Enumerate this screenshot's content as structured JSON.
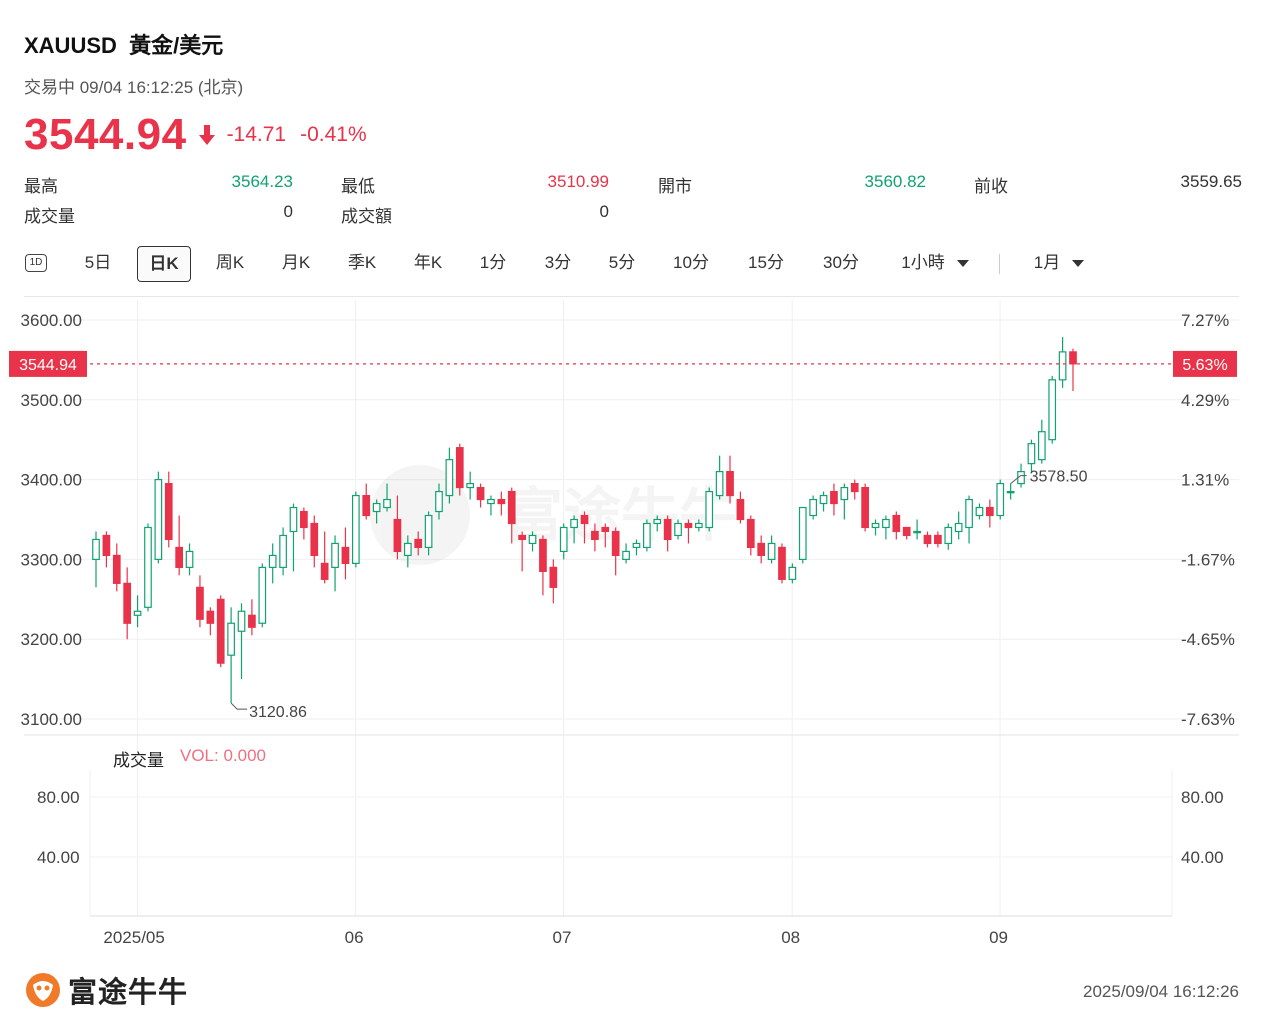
{
  "header": {
    "symbol": "XAUUSD",
    "name": "黃金/美元",
    "status_time": "交易中 09/04 16:12:25 (北京)",
    "price": "3544.94",
    "change": "-14.71",
    "change_pct": "-0.41%"
  },
  "stats": [
    {
      "label": "最高",
      "value": "3564.23",
      "color": "green"
    },
    {
      "label": "最低",
      "value": "3510.99",
      "color": "red"
    },
    {
      "label": "開市",
      "value": "3560.82",
      "color": "green"
    },
    {
      "label": "前收",
      "value": "3559.65",
      "color": "dark"
    },
    {
      "label": "成交量",
      "value": "0",
      "color": "dark"
    },
    {
      "label": "成交額",
      "value": "0",
      "color": "dark"
    }
  ],
  "tabs": {
    "d1": "1D",
    "items": [
      "5日",
      "日K",
      "周K",
      "月K",
      "季K",
      "年K",
      "1分",
      "3分",
      "5分",
      "10分",
      "15分",
      "30分"
    ],
    "active": "日K",
    "dropdown_interval": "1小時",
    "dropdown_range": "1月"
  },
  "volume": {
    "title": "成交量",
    "value_label": "VOL: 0.000",
    "y_ticks": [
      "80.00",
      "40.00"
    ]
  },
  "footer": {
    "brand": "富途牛牛",
    "timestamp": "2025/09/04 16:12:26"
  },
  "colors": {
    "up": "#10a36e",
    "down": "#e8334a",
    "price_line": "#e8334a"
  },
  "chart_data": {
    "type": "candlestick",
    "y_ticks": [
      "3600.00",
      "3500.00",
      "3400.00",
      "3300.00",
      "3200.00",
      "3100.00"
    ],
    "y_ticks_pct": [
      "7.27%",
      "4.29%",
      "1.31%",
      "-1.67%",
      "-4.65%",
      "-7.63%"
    ],
    "ylim": [
      3080,
      3625
    ],
    "x_labels": [
      {
        "label": "2025/05",
        "index": 1
      },
      {
        "label": "06",
        "index": 22
      },
      {
        "label": "07",
        "index": 42
      },
      {
        "label": "08",
        "index": 64
      },
      {
        "label": "09",
        "index": 84
      }
    ],
    "current_price": 3544.94,
    "current_price_label": "3544.94",
    "current_pct_label": "5.63%",
    "max_label": "3578.50",
    "max_index": 88,
    "min_label": "3120.86",
    "min_index": 13,
    "candles": [
      [
        3300,
        3325,
        3265,
        3335
      ],
      [
        3330,
        3305,
        3290,
        3335
      ],
      [
        3305,
        3270,
        3260,
        3320
      ],
      [
        3270,
        3220,
        3200,
        3290
      ],
      [
        3230,
        3235,
        3215,
        3255
      ],
      [
        3240,
        3340,
        3235,
        3345
      ],
      [
        3300,
        3400,
        3295,
        3410
      ],
      [
        3395,
        3325,
        3315,
        3410
      ],
      [
        3315,
        3290,
        3280,
        3355
      ],
      [
        3290,
        3310,
        3280,
        3320
      ],
      [
        3265,
        3225,
        3215,
        3280
      ],
      [
        3235,
        3220,
        3205,
        3240
      ],
      [
        3250,
        3170,
        3165,
        3255
      ],
      [
        3180,
        3220,
        3120,
        3240
      ],
      [
        3210,
        3235,
        3150,
        3245
      ],
      [
        3230,
        3215,
        3205,
        3250
      ],
      [
        3220,
        3290,
        3215,
        3295
      ],
      [
        3290,
        3305,
        3270,
        3320
      ],
      [
        3290,
        3330,
        3280,
        3340
      ],
      [
        3335,
        3365,
        3285,
        3370
      ],
      [
        3360,
        3340,
        3325,
        3365
      ],
      [
        3345,
        3305,
        3290,
        3355
      ],
      [
        3295,
        3275,
        3270,
        3335
      ],
      [
        3290,
        3320,
        3260,
        3330
      ],
      [
        3315,
        3295,
        3275,
        3340
      ],
      [
        3295,
        3380,
        3290,
        3385
      ],
      [
        3380,
        3355,
        3350,
        3395
      ],
      [
        3360,
        3370,
        3345,
        3375
      ],
      [
        3365,
        3375,
        3360,
        3395
      ],
      [
        3350,
        3310,
        3300,
        3380
      ],
      [
        3305,
        3320,
        3290,
        3330
      ],
      [
        3325,
        3315,
        3305,
        3335
      ],
      [
        3315,
        3355,
        3305,
        3360
      ],
      [
        3360,
        3385,
        3350,
        3395
      ],
      [
        3380,
        3425,
        3370,
        3440
      ],
      [
        3440,
        3390,
        3380,
        3445
      ],
      [
        3390,
        3395,
        3375,
        3410
      ],
      [
        3390,
        3375,
        3365,
        3395
      ],
      [
        3370,
        3375,
        3355,
        3380
      ],
      [
        3375,
        3370,
        3355,
        3385
      ],
      [
        3385,
        3345,
        3320,
        3390
      ],
      [
        3330,
        3325,
        3285,
        3335
      ],
      [
        3320,
        3330,
        3310,
        3335
      ],
      [
        3325,
        3285,
        3255,
        3330
      ],
      [
        3290,
        3265,
        3245,
        3300
      ],
      [
        3310,
        3340,
        3300,
        3345
      ],
      [
        3340,
        3350,
        3320,
        3355
      ],
      [
        3355,
        3345,
        3320,
        3360
      ],
      [
        3335,
        3325,
        3310,
        3345
      ],
      [
        3340,
        3335,
        3315,
        3345
      ],
      [
        3335,
        3305,
        3280,
        3340
      ],
      [
        3300,
        3310,
        3295,
        3320
      ],
      [
        3315,
        3320,
        3305,
        3325
      ],
      [
        3315,
        3345,
        3310,
        3350
      ],
      [
        3345,
        3350,
        3335,
        3355
      ],
      [
        3350,
        3325,
        3310,
        3355
      ],
      [
        3330,
        3345,
        3325,
        3350
      ],
      [
        3345,
        3340,
        3320,
        3350
      ],
      [
        3340,
        3345,
        3335,
        3350
      ],
      [
        3340,
        3385,
        3335,
        3390
      ],
      [
        3380,
        3410,
        3375,
        3430
      ],
      [
        3410,
        3380,
        3370,
        3430
      ],
      [
        3375,
        3350,
        3345,
        3385
      ],
      [
        3350,
        3315,
        3305,
        3355
      ],
      [
        3320,
        3305,
        3295,
        3330
      ],
      [
        3300,
        3320,
        3295,
        3330
      ],
      [
        3315,
        3275,
        3270,
        3320
      ],
      [
        3275,
        3290,
        3270,
        3295
      ],
      [
        3300,
        3365,
        3295,
        3365
      ],
      [
        3355,
        3375,
        3350,
        3380
      ],
      [
        3370,
        3380,
        3360,
        3385
      ],
      [
        3385,
        3370,
        3355,
        3395
      ],
      [
        3375,
        3390,
        3350,
        3395
      ],
      [
        3395,
        3385,
        3375,
        3400
      ],
      [
        3390,
        3340,
        3335,
        3395
      ],
      [
        3340,
        3345,
        3330,
        3350
      ],
      [
        3340,
        3350,
        3325,
        3355
      ],
      [
        3355,
        3335,
        3325,
        3360
      ],
      [
        3340,
        3330,
        3325,
        3340
      ],
      [
        3335,
        3335,
        3325,
        3350
      ],
      [
        3330,
        3320,
        3315,
        3335
      ],
      [
        3330,
        3320,
        3315,
        3335
      ],
      [
        3320,
        3340,
        3312,
        3345
      ],
      [
        3335,
        3345,
        3325,
        3360
      ],
      [
        3340,
        3375,
        3320,
        3380
      ],
      [
        3355,
        3365,
        3350,
        3370
      ],
      [
        3365,
        3355,
        3340,
        3375
      ],
      [
        3355,
        3395,
        3350,
        3400
      ],
      [
        3385,
        3385,
        3375,
        3395
      ],
      [
        3395,
        3410,
        3390,
        3420
      ],
      [
        3420,
        3445,
        3410,
        3450
      ],
      [
        3425,
        3460,
        3420,
        3475
      ],
      [
        3450,
        3525,
        3445,
        3530
      ],
      [
        3525,
        3560,
        3515,
        3578.5
      ],
      [
        3560,
        3545,
        3511,
        3564
      ]
    ]
  }
}
